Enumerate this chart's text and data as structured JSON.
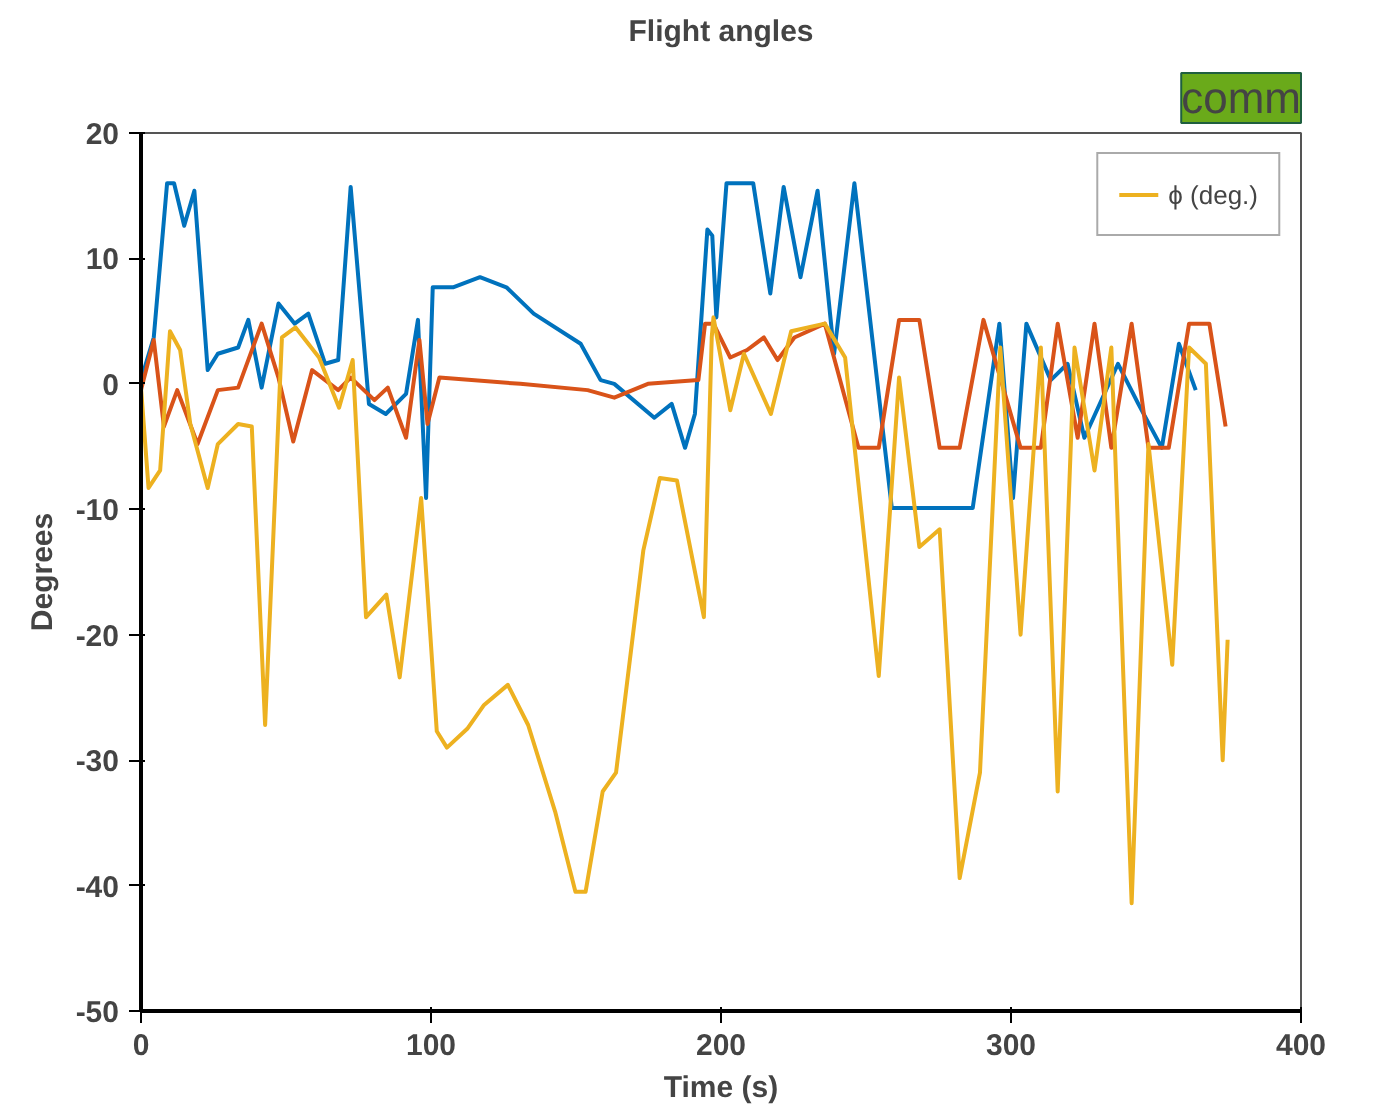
{
  "chart_data": {
    "type": "line",
    "title": "Flight angles",
    "xlabel": "Time (s)",
    "ylabel": "Degrees",
    "annotations": [
      "comm"
    ],
    "xlim": [
      0,
      400
    ],
    "ylim": [
      -50,
      20
    ],
    "xticks": [
      0,
      100,
      200,
      300,
      400
    ],
    "yticks": [
      -50,
      -40,
      -30,
      -20,
      -10,
      0,
      10,
      20
    ],
    "grid": false,
    "legend": "top right",
    "line_style": "solid",
    "marker": "none",
    "series": [
      {
        "color": "#0072bd",
        "x": [
          0,
          4.4,
          9,
          11.4,
          14.9,
          18.4,
          23,
          26.5,
          33.5,
          37,
          41.6,
          47.4,
          53,
          57.7,
          63.5,
          68,
          72.3,
          78.6,
          84.4,
          91.4,
          95.5,
          98.3,
          100.6,
          107.6,
          116.9,
          126,
          135.4,
          151.6,
          158.5,
          163.2,
          177,
          183,
          187.6,
          191,
          195.3,
          197,
          198.4,
          201.9,
          211.1,
          217,
          221.6,
          227.4,
          233.3,
          239,
          246,
          258.9,
          286.8,
          296,
          300.7,
          305.3,
          313.7,
          319.5,
          325.3,
          336.9,
          343.9,
          352,
          357.9,
          363.7
        ],
        "values": [
          0.3,
          3.7,
          16,
          16,
          12.6,
          15.4,
          1.1,
          2.4,
          2.9,
          5.1,
          -0.3,
          6.4,
          4.8,
          5.6,
          1.6,
          1.9,
          15.7,
          -1.6,
          -2.4,
          -0.8,
          5.1,
          -9.1,
          7.7,
          7.7,
          8.5,
          7.7,
          5.6,
          3.2,
          0.3,
          0,
          -2.7,
          -1.6,
          -5.1,
          -2.4,
          12.3,
          11.8,
          5.3,
          16,
          16,
          7.2,
          15.7,
          8.5,
          15.4,
          2.4,
          16,
          -9.9,
          -9.9,
          4.8,
          -9.1,
          4.8,
          0.3,
          1.6,
          -4.3,
          1.6,
          -1.6,
          -5.1,
          3.2,
          -0.5
        ]
      },
      {
        "color": "#d95319",
        "x": [
          0,
          4.4,
          7.9,
          12.5,
          19.5,
          26.5,
          33.5,
          41.6,
          47.4,
          52.5,
          59,
          68,
          72.3,
          80.5,
          85.1,
          91.4,
          96,
          98.8,
          102.9,
          130.8,
          154,
          163.2,
          174.8,
          192.2,
          194.5,
          197.4,
          203.2,
          209,
          214.8,
          219.5,
          225.3,
          235.8,
          247.4,
          254.4,
          261.4,
          268.4,
          275.4,
          282.3,
          290.5,
          303.3,
          310.3,
          316.1,
          323,
          328.8,
          334.6,
          341.6,
          347.4,
          354.4,
          361.4,
          368.4,
          374
        ],
        "values": [
          -0.5,
          3.5,
          -3.4,
          -0.5,
          -4.8,
          -0.5,
          -0.3,
          4.8,
          0.5,
          -4.6,
          1.1,
          -0.5,
          0.5,
          -1.3,
          -0.3,
          -4.3,
          3.5,
          -3.2,
          0.5,
          0,
          -0.5,
          -1.1,
          0,
          0.3,
          4.8,
          4.8,
          2.1,
          2.7,
          3.7,
          1.9,
          3.7,
          4.8,
          -5.1,
          -5.1,
          5.1,
          5.1,
          -5.1,
          -5.1,
          5.1,
          -5.1,
          -5.1,
          4.8,
          -4.3,
          4.8,
          -5.1,
          4.8,
          -5.1,
          -5.1,
          4.8,
          4.8,
          -3.4
        ]
      },
      {
        "name": "ϕ (deg.)",
        "color": "#edb120",
        "x": [
          0,
          2.6,
          6.6,
          10,
          13.5,
          17,
          23,
          26.5,
          33.5,
          38.2,
          42.8,
          48.6,
          53.3,
          61.4,
          68.3,
          73,
          77.6,
          84.6,
          89.2,
          96.6,
          102,
          105.5,
          112.5,
          118.3,
          126.5,
          133.5,
          142.8,
          149.8,
          153.3,
          159.2,
          163.8,
          173.2,
          178.9,
          184.8,
          194.1,
          196.8,
          197.4,
          203.2,
          207.9,
          217.2,
          224.2,
          235.8,
          242.8,
          254.4,
          261.4,
          268.4,
          275.4,
          282.3,
          289.3,
          296.3,
          303.3,
          310.3,
          316.1,
          321.9,
          328.8,
          334.6,
          341.6,
          347.4,
          355.6,
          361.4,
          367.2,
          373,
          374.7
        ],
        "values": [
          -0.3,
          -8.3,
          -6.9,
          4.2,
          2.7,
          -3.2,
          -8.3,
          -4.8,
          -3.2,
          -3.4,
          -27.2,
          3.7,
          4.5,
          2.1,
          -1.9,
          1.9,
          -18.6,
          -16.8,
          -23.4,
          -9.1,
          -27.7,
          -29,
          -27.5,
          -25.6,
          -24,
          -27.2,
          -34.1,
          -40.5,
          -40.5,
          -32.5,
          -31,
          -13.3,
          -7.5,
          -7.7,
          -18.6,
          3.7,
          5.3,
          -2.1,
          2.4,
          -2.4,
          4.2,
          4.8,
          2.1,
          -23.3,
          0.5,
          -13,
          -11.6,
          -39.4,
          -31,
          2.9,
          -20,
          2.9,
          -32.5,
          2.9,
          -6.9,
          2.9,
          -41.4,
          -4.8,
          -22.4,
          2.9,
          1.6,
          -30,
          -20.4
        ]
      }
    ]
  }
}
